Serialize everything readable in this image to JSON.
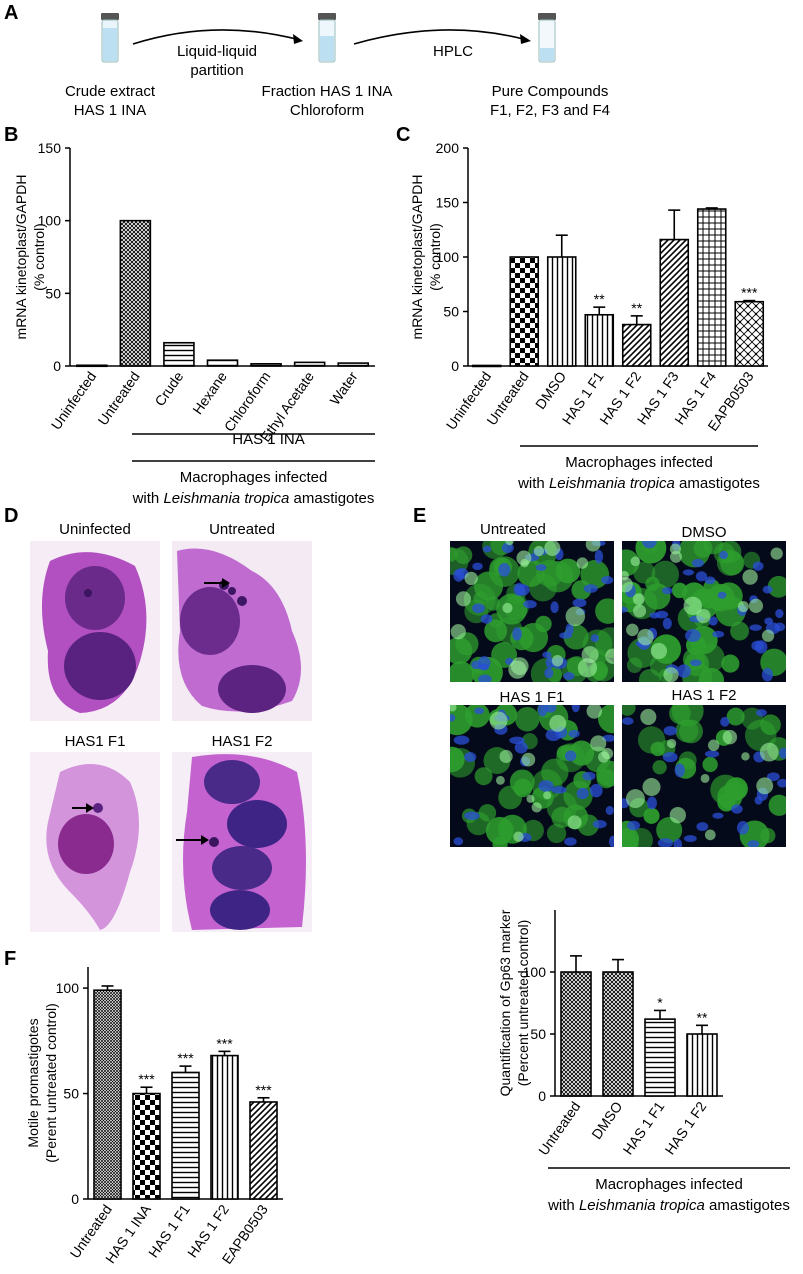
{
  "panel_letters": {
    "a": "A",
    "b": "B",
    "c": "C",
    "d": "D",
    "e": "E",
    "f": "F"
  },
  "workflow": {
    "step1": [
      "Crude extract",
      "HAS 1 INA"
    ],
    "arrow1": [
      "Liquid-liquid",
      "partition"
    ],
    "step2": [
      "Fraction HAS 1 INA",
      "Chloroform"
    ],
    "arrow2": [
      "HPLC"
    ],
    "step3": [
      "Pure Compounds",
      "F1, F2, F3 and F4"
    ]
  },
  "colors": {
    "vial_liquid": "#bcdff2",
    "vial_cap": "#555555",
    "cell_stain": "#9a3fae",
    "cell_bg": "#efd8f0",
    "fluor_green": "#33cc33",
    "fluor_blue": "#1a3ecc"
  },
  "micrographs": {
    "d": [
      "Uninfected",
      "Untreated",
      "HAS1 F1",
      "HAS1 F2"
    ],
    "e": [
      "Untreated",
      "DMSO",
      "HAS 1 F1",
      "HAS 1 F2"
    ]
  },
  "chart_data": [
    {
      "id": "B",
      "type": "bar",
      "categories": [
        "Uninfected",
        "Untreated",
        "Crude",
        "Hexane",
        "Chloroform",
        "Ethyl Acetate",
        "Water"
      ],
      "values": [
        0.5,
        100,
        16,
        4,
        1.5,
        2.5,
        2
      ],
      "ylabel": [
        "mRNA kinetoplast/GAPDH",
        "(% control)"
      ],
      "ylim": [
        0,
        150
      ],
      "yticks": [
        0,
        50,
        100,
        150
      ],
      "group_labels": [
        "HAS 1 INA"
      ],
      "footer": [
        "Macrophages infected",
        "with ",
        "Leishmania tropica",
        " amastigotes"
      ]
    },
    {
      "id": "C",
      "type": "bar",
      "categories": [
        "Uninfected",
        "Untreated",
        "DMSO",
        "HAS 1 F1",
        "HAS 1 F2",
        "HAS 1 F3",
        "HAS 1 F4",
        "EAPB0503"
      ],
      "values": [
        0.5,
        100,
        100,
        47,
        38,
        116,
        144,
        59
      ],
      "errors": [
        0,
        0,
        20,
        7,
        8,
        27,
        1,
        1
      ],
      "significance": [
        "",
        "",
        "",
        "**",
        "**",
        "",
        "",
        "***"
      ],
      "ylabel": [
        "mRNA kinetoplast/GAPDH",
        "(% control)"
      ],
      "ylim": [
        0,
        200
      ],
      "yticks": [
        0,
        50,
        100,
        150,
        200
      ],
      "footer": [
        "Macrophages infected",
        "with ",
        "Leishmania tropica",
        " amastigotes"
      ]
    },
    {
      "id": "E",
      "type": "bar",
      "categories": [
        "Untreated",
        "DMSO",
        "HAS 1 F1",
        "HAS 1 F2"
      ],
      "values": [
        100,
        100,
        62,
        50
      ],
      "errors": [
        13,
        10,
        7,
        7
      ],
      "significance": [
        "",
        "",
        "*",
        "**"
      ],
      "ylabel": [
        "Quantification of Gp63 marker",
        "(Percent untreated control)"
      ],
      "ylim": [
        0,
        150
      ],
      "yticks": [
        0,
        50,
        100
      ],
      "footer": [
        "Macrophages infected",
        "with ",
        "Leishmania tropica",
        " amastigotes"
      ]
    },
    {
      "id": "F",
      "type": "bar",
      "categories": [
        "Untreated",
        "HAS 1 INA",
        "HAS 1 F1",
        "HAS 1 F2",
        "EAPB0503"
      ],
      "values": [
        99,
        50,
        60,
        68,
        46
      ],
      "errors": [
        2,
        3,
        3,
        2,
        2
      ],
      "significance": [
        "",
        "***",
        "***",
        "***",
        "***"
      ],
      "ylabel": [
        "Motile promastigotes",
        "(Perent untreated control)"
      ],
      "ylim": [
        0,
        110
      ],
      "yticks": [
        0,
        50,
        100
      ]
    }
  ]
}
